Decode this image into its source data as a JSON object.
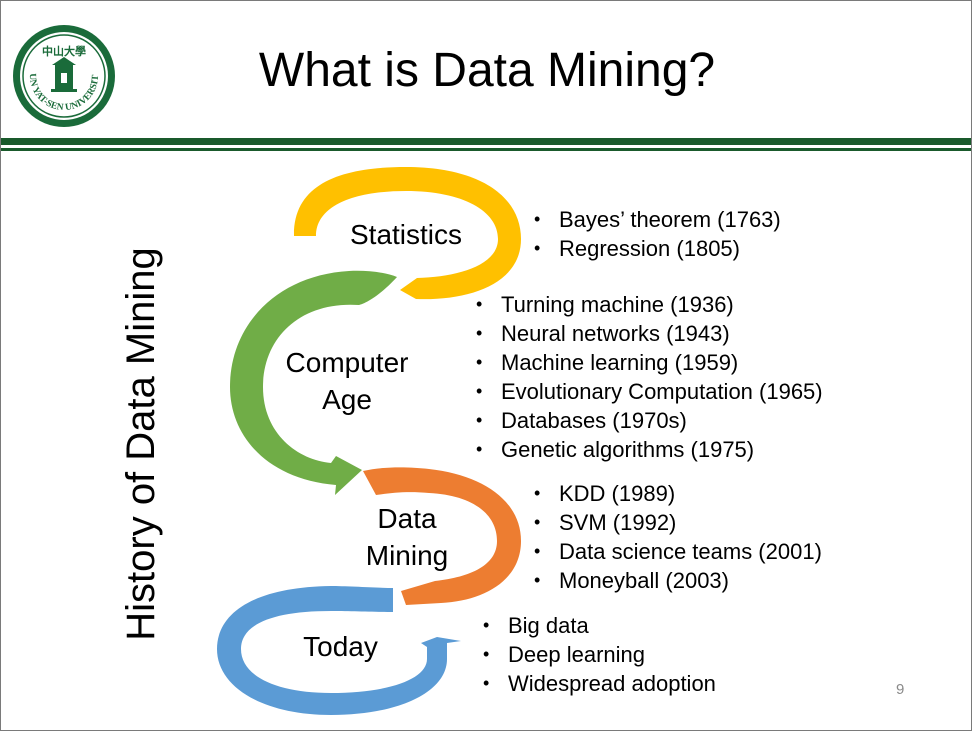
{
  "slide": {
    "title": "What is Data Mining?",
    "vertical_title": "History of Data Mining",
    "page_number": "9",
    "logo": {
      "chinese_text": "中山大學",
      "english_text": "SUN YAT-SEN UNIVERSITY",
      "color": "#1a6b3a"
    }
  },
  "stages": [
    {
      "label": "Statistics",
      "color": "#ffc000",
      "items": [
        "Bayes’ theorem (1763)",
        "Regression (1805)"
      ]
    },
    {
      "label_line1": "Computer",
      "label_line2": "Age",
      "color": "#70ad47",
      "items": [
        "Turning machine (1936)",
        "Neural networks (1943)",
        "Machine learning (1959)",
        "Evolutionary Computation (1965)",
        "Databases (1970s)",
        "Genetic algorithms (1975)"
      ]
    },
    {
      "label_line1": "Data",
      "label_line2": "Mining",
      "color": "#ed7d31",
      "items": [
        "KDD (1989)",
        "SVM (1992)",
        "Data science teams (2001)",
        "Moneyball (2003)"
      ]
    },
    {
      "label": "Today",
      "color": "#5b9bd5",
      "items": [
        "Big data",
        "Deep learning",
        "Widespread adoption"
      ]
    }
  ]
}
